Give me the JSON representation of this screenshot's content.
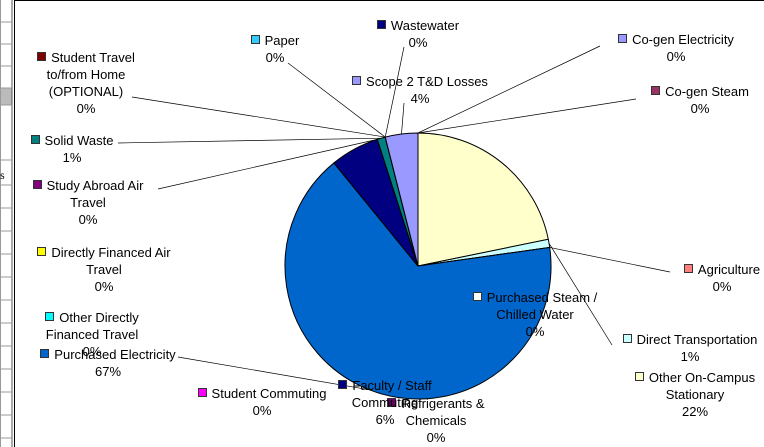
{
  "chart_data": {
    "type": "pie",
    "cell_fragment": "s",
    "categories": [
      "Other On-Campus Stationary",
      "Direct Transportation",
      "Agriculture",
      "Purchased Steam / Chilled Water",
      "Purchased Electricity",
      "Refrigerants & Chemicals",
      "Student Commuting",
      "Faculty / Staff Commuting",
      "Other Directly Financed Travel",
      "Directly Financed Air Travel",
      "Study Abroad Air Travel",
      "Solid Waste",
      "Student Travel to/from Home (OPTIONAL)",
      "Paper",
      "Wastewater",
      "Scope 2 T&D Losses",
      "Co-gen Electricity",
      "Co-gen Steam"
    ],
    "values": [
      22,
      1,
      0,
      0,
      67,
      0,
      0,
      6,
      0,
      0,
      0,
      1,
      0,
      0,
      0,
      4,
      0,
      0
    ],
    "value_labels": [
      "22%",
      "1%",
      "0%",
      "0%",
      "67%",
      "0%",
      "0%",
      "6%",
      "0%",
      "0%",
      "0%",
      "1%",
      "0%",
      "0%",
      "0%",
      "4%",
      "0%",
      "0%"
    ],
    "colors": [
      "#ffffcc",
      "#ccffff",
      "#ff8080",
      "#ffffff",
      "#0066cc",
      "#660066",
      "#ff00ff",
      "#000080",
      "#00ffff",
      "#ffff00",
      "#800080",
      "#008080",
      "#800000",
      "#33ccff",
      "#000080",
      "#9999ff",
      "#9999ff",
      "#993366"
    ]
  }
}
